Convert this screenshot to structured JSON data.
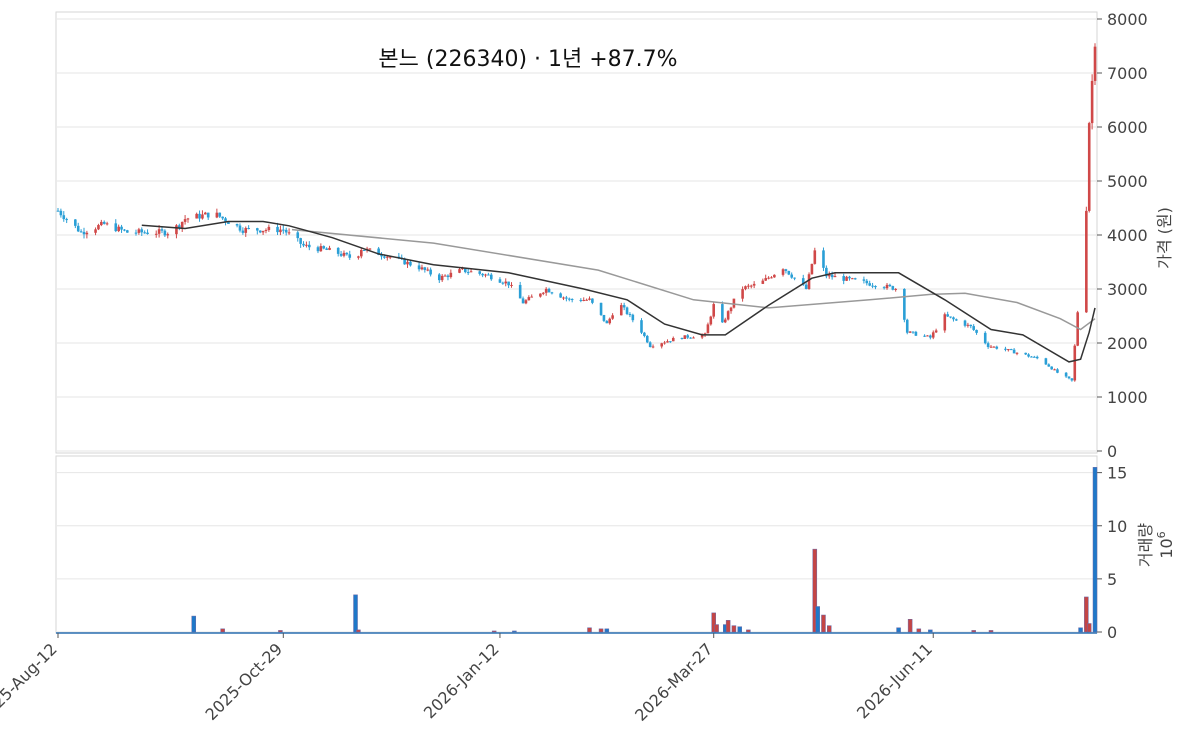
{
  "chart_data": [
    {
      "type": "candlestick",
      "title": "본느 (226340) · 1년 +87.7%",
      "ylabel": "가격 (원)",
      "ylim": [
        0,
        8000
      ],
      "yticks": [
        "0",
        "1000",
        "2000",
        "3000",
        "4000",
        "5000",
        "6000",
        "7000",
        "8000"
      ],
      "x_range": [
        "2025-08-12",
        "2026-08-06"
      ],
      "xticks": [
        {
          "date": "2025-08-12",
          "label": "2025-Aug-12"
        },
        {
          "date": "2025-10-29",
          "label": "2025-Oct-29"
        },
        {
          "date": "2026-01-12",
          "label": "2026-Jan-12"
        },
        {
          "date": "2026-03-27",
          "label": "2026-Mar-27"
        },
        {
          "date": "2026-06-11",
          "label": "2026-Jun-11"
        }
      ],
      "grid": true,
      "colors": {
        "up": "#d04848",
        "down": "#2a9fd6",
        "ma_short": "#333333",
        "ma_long": "#999999"
      },
      "ohlc_keypoints": [
        [
          "2025-08-12",
          4450
        ],
        [
          "2025-08-20",
          4050
        ],
        [
          "2025-08-28",
          4200
        ],
        [
          "2025-09-05",
          4050
        ],
        [
          "2025-09-20",
          4050
        ],
        [
          "2025-09-25",
          4300
        ],
        [
          "2025-10-05",
          4400
        ],
        [
          "2025-10-15",
          4100
        ],
        [
          "2025-10-29",
          4100
        ],
        [
          "2025-11-05",
          3800
        ],
        [
          "2025-11-15",
          3700
        ],
        [
          "2025-11-23",
          3550
        ],
        [
          "2025-11-25",
          3750
        ],
        [
          "2025-12-05",
          3600
        ],
        [
          "2025-12-15",
          3400
        ],
        [
          "2025-12-22",
          3200
        ],
        [
          "2025-12-30",
          3350
        ],
        [
          "2026-01-08",
          3250
        ],
        [
          "2026-01-15",
          3100
        ],
        [
          "2026-01-20",
          2750
        ],
        [
          "2026-01-28",
          3000
        ],
        [
          "2026-02-05",
          2800
        ],
        [
          "2026-02-12",
          2800
        ],
        [
          "2026-02-18",
          2350
        ],
        [
          "2026-02-22",
          2750
        ],
        [
          "2026-03-01",
          2300
        ],
        [
          "2026-03-05",
          1950
        ],
        [
          "2026-03-15",
          2100
        ],
        [
          "2026-03-24",
          2150
        ],
        [
          "2026-03-27",
          2700
        ],
        [
          "2026-03-30",
          2350
        ],
        [
          "2026-04-05",
          3000
        ],
        [
          "2026-04-12",
          3100
        ],
        [
          "2026-04-20",
          3400
        ],
        [
          "2026-04-28",
          3000
        ],
        [
          "2026-05-01",
          3700
        ],
        [
          "2026-05-05",
          3250
        ],
        [
          "2026-05-30",
          3000
        ],
        [
          "2026-06-02",
          2200
        ],
        [
          "2026-06-10",
          2100
        ],
        [
          "2026-06-15",
          2500
        ],
        [
          "2026-06-24",
          2300
        ],
        [
          "2026-06-30",
          1950
        ],
        [
          "2026-07-08",
          1850
        ],
        [
          "2026-07-18",
          1700
        ],
        [
          "2026-07-24",
          1450
        ],
        [
          "2026-07-29",
          1300
        ],
        [
          "2026-08-03",
          4500
        ],
        [
          "2026-08-04",
          6100
        ],
        [
          "2026-08-06",
          7600
        ]
      ],
      "ma_short": [
        [
          "2025-09-10",
          4180
        ],
        [
          "2025-09-25",
          4120
        ],
        [
          "2025-10-10",
          4250
        ],
        [
          "2025-10-22",
          4250
        ],
        [
          "2025-10-31",
          4170
        ],
        [
          "2025-11-15",
          3950
        ],
        [
          "2025-12-01",
          3650
        ],
        [
          "2025-12-20",
          3450
        ],
        [
          "2026-01-15",
          3300
        ],
        [
          "2026-02-10",
          3000
        ],
        [
          "2026-02-25",
          2800
        ],
        [
          "2026-03-10",
          2350
        ],
        [
          "2026-03-23",
          2150
        ],
        [
          "2026-03-31",
          2150
        ],
        [
          "2026-04-15",
          2700
        ],
        [
          "2026-04-30",
          3200
        ],
        [
          "2026-05-08",
          3300
        ],
        [
          "2026-05-30",
          3300
        ],
        [
          "2026-06-15",
          2800
        ],
        [
          "2026-07-01",
          2250
        ],
        [
          "2026-07-12",
          2150
        ],
        [
          "2026-07-28",
          1650
        ],
        [
          "2026-08-01",
          1700
        ],
        [
          "2026-08-04",
          2200
        ],
        [
          "2026-08-06",
          2650
        ]
      ],
      "ma_long": [
        [
          "2025-11-01",
          4100
        ],
        [
          "2025-12-20",
          3850
        ],
        [
          "2026-02-15",
          3350
        ],
        [
          "2026-03-20",
          2800
        ],
        [
          "2026-04-15",
          2650
        ],
        [
          "2026-05-20",
          2800
        ],
        [
          "2026-06-10",
          2900
        ],
        [
          "2026-06-22",
          2920
        ],
        [
          "2026-07-10",
          2750
        ],
        [
          "2026-07-25",
          2450
        ],
        [
          "2026-08-01",
          2250
        ],
        [
          "2026-08-06",
          2450
        ]
      ]
    },
    {
      "type": "bar",
      "ylabel": "거래량",
      "yscale_label": "10⁶",
      "scale_base": "10",
      "scale_exp": "6",
      "ylim": [
        0,
        16
      ],
      "yticks": [
        "0",
        "5",
        "10",
        "15"
      ],
      "colors": {
        "up": "#c44545",
        "down": "#1f78c8",
        "edge": "#6a6aa8"
      },
      "bars": [
        [
          "2025-09-28",
          1.5
        ],
        [
          "2025-10-08",
          0.3
        ],
        [
          "2025-10-28",
          0.15
        ],
        [
          "2025-11-23",
          3.5
        ],
        [
          "2025-11-24",
          0.2
        ],
        [
          "2026-01-10",
          0.1
        ],
        [
          "2026-01-17",
          0.1
        ],
        [
          "2026-02-12",
          0.4
        ],
        [
          "2026-02-16",
          0.3
        ],
        [
          "2026-02-18",
          0.3
        ],
        [
          "2026-03-27",
          1.8
        ],
        [
          "2026-03-28",
          0.7
        ],
        [
          "2026-03-31",
          0.7
        ],
        [
          "2026-04-01",
          1.1
        ],
        [
          "2026-04-03",
          0.6
        ],
        [
          "2026-04-05",
          0.5
        ],
        [
          "2026-04-08",
          0.2
        ],
        [
          "2026-05-01",
          7.8
        ],
        [
          "2026-05-02",
          2.4
        ],
        [
          "2026-05-04",
          1.6
        ],
        [
          "2026-05-06",
          0.6
        ],
        [
          "2026-05-30",
          0.4
        ],
        [
          "2026-06-03",
          1.2
        ],
        [
          "2026-06-06",
          0.3
        ],
        [
          "2026-06-10",
          0.2
        ],
        [
          "2026-06-25",
          0.15
        ],
        [
          "2026-07-01",
          0.15
        ],
        [
          "2026-08-01",
          0.4
        ],
        [
          "2026-08-03",
          3.3
        ],
        [
          "2026-08-04",
          0.8
        ],
        [
          "2026-08-06",
          15.5
        ]
      ]
    }
  ]
}
